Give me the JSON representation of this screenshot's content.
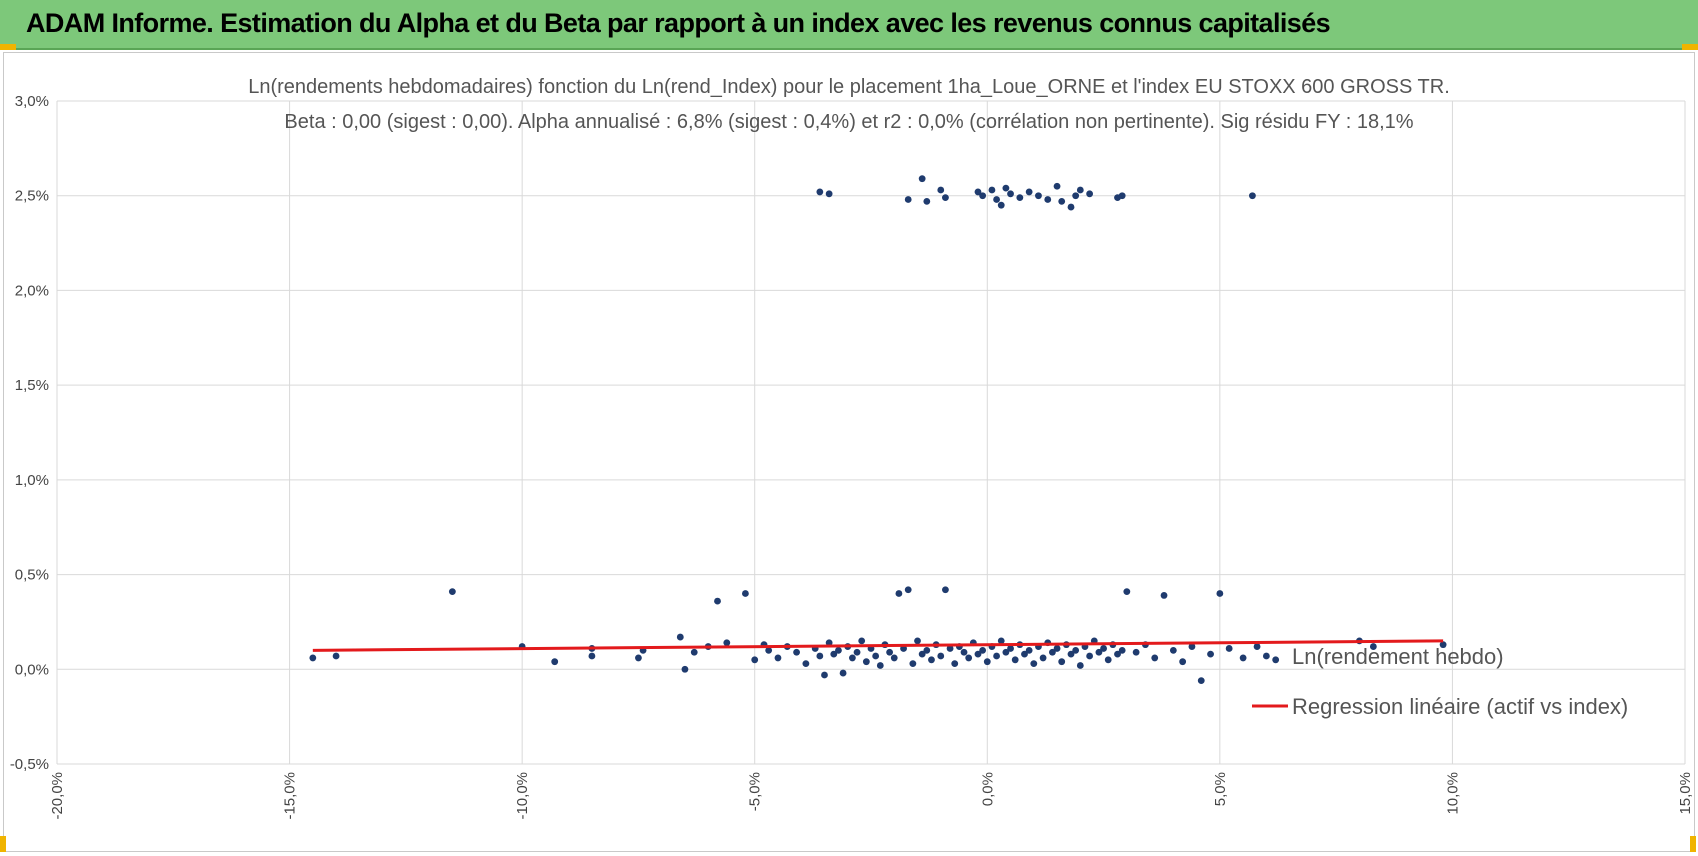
{
  "header": {
    "title": "ADAM Informe. Estimation du Alpha et du Beta par rapport à un index avec les revenus connus capitalisés"
  },
  "colors": {
    "banner": "#7dc87a",
    "points": "#1f3b6e",
    "regression": "#e31a1c",
    "grid": "#d9d9d9",
    "handles": "#f0b400"
  },
  "chart_data": {
    "type": "scatter",
    "title_line1": "Ln(rendements hebdomadaires) fonction du Ln(rend_Index) pour le placement 1ha_Loue_ORNE et l'index EU STOXX 600 GROSS TR.",
    "title_line2": "Beta : 0,00 (sigest : 0,00). Alpha annualisé : 6,8% (sigest : 0,4%) et r2 : 0,0% (corrélation non pertinente). Sig résidu FY : 18,1%",
    "xlim": [
      -0.2,
      0.15
    ],
    "ylim": [
      -0.005,
      0.03
    ],
    "x_ticks": [
      "-20,0%",
      "-15,0%",
      "-10,0%",
      "-5,0%",
      "0,0%",
      "5,0%",
      "10,0%",
      "15,0%"
    ],
    "y_ticks": [
      "3,0%",
      "2,5%",
      "2,0%",
      "1,5%",
      "1,0%",
      "0,5%",
      "0,0%",
      "-0,5%"
    ],
    "grid": "vertical and horizontal",
    "legend_position": "right",
    "series": [
      {
        "name": "Ln(rendement hebdo)",
        "kind": "scatter",
        "points": [
          [
            -0.145,
            0.0006
          ],
          [
            -0.14,
            0.0007
          ],
          [
            -0.115,
            0.0041
          ],
          [
            -0.1,
            0.0012
          ],
          [
            -0.093,
            0.0004
          ],
          [
            -0.085,
            0.0007
          ],
          [
            -0.085,
            0.0011
          ],
          [
            -0.075,
            0.0006
          ],
          [
            -0.074,
            0.001
          ],
          [
            -0.066,
            0.0017
          ],
          [
            -0.065,
            0.0
          ],
          [
            -0.063,
            0.0009
          ],
          [
            -0.06,
            0.0012
          ],
          [
            -0.058,
            0.0036
          ],
          [
            -0.056,
            0.0014
          ],
          [
            -0.052,
            0.004
          ],
          [
            -0.05,
            0.0005
          ],
          [
            -0.048,
            0.0013
          ],
          [
            -0.047,
            0.001
          ],
          [
            -0.045,
            0.0006
          ],
          [
            -0.043,
            0.0012
          ],
          [
            -0.041,
            0.0009
          ],
          [
            -0.039,
            0.0003
          ],
          [
            -0.037,
            0.0011
          ],
          [
            -0.036,
            0.0007
          ],
          [
            -0.035,
            -0.0003
          ],
          [
            -0.034,
            0.0014
          ],
          [
            -0.033,
            0.0008
          ],
          [
            -0.032,
            0.001
          ],
          [
            -0.031,
            -0.0002
          ],
          [
            -0.03,
            0.0012
          ],
          [
            -0.029,
            0.0006
          ],
          [
            -0.028,
            0.0009
          ],
          [
            -0.027,
            0.0015
          ],
          [
            -0.026,
            0.0004
          ],
          [
            -0.025,
            0.0011
          ],
          [
            -0.024,
            0.0007
          ],
          [
            -0.023,
            0.0002
          ],
          [
            -0.022,
            0.0013
          ],
          [
            -0.021,
            0.0009
          ],
          [
            -0.02,
            0.0006
          ],
          [
            -0.019,
            0.004
          ],
          [
            -0.018,
            0.0011
          ],
          [
            -0.017,
            0.0042
          ],
          [
            -0.016,
            0.0003
          ],
          [
            -0.015,
            0.0015
          ],
          [
            -0.014,
            0.0008
          ],
          [
            -0.013,
            0.001
          ],
          [
            -0.012,
            0.0005
          ],
          [
            -0.011,
            0.0013
          ],
          [
            -0.01,
            0.0007
          ],
          [
            -0.009,
            0.0042
          ],
          [
            -0.008,
            0.0011
          ],
          [
            -0.007,
            0.0003
          ],
          [
            -0.006,
            0.0012
          ],
          [
            -0.005,
            0.0009
          ],
          [
            -0.004,
            0.0006
          ],
          [
            -0.003,
            0.0014
          ],
          [
            -0.002,
            0.0008
          ],
          [
            -0.001,
            0.001
          ],
          [
            0.0,
            0.0004
          ],
          [
            0.001,
            0.0012
          ],
          [
            0.002,
            0.0007
          ],
          [
            0.003,
            0.0015
          ],
          [
            0.004,
            0.0009
          ],
          [
            0.005,
            0.0011
          ],
          [
            0.006,
            0.0005
          ],
          [
            0.007,
            0.0013
          ],
          [
            0.008,
            0.0008
          ],
          [
            0.009,
            0.001
          ],
          [
            0.01,
            0.0003
          ],
          [
            0.011,
            0.0012
          ],
          [
            0.012,
            0.0006
          ],
          [
            0.013,
            0.0014
          ],
          [
            0.014,
            0.0009
          ],
          [
            0.015,
            0.0011
          ],
          [
            0.016,
            0.0004
          ],
          [
            0.017,
            0.0013
          ],
          [
            0.018,
            0.0008
          ],
          [
            0.019,
            0.001
          ],
          [
            0.02,
            0.0002
          ],
          [
            0.021,
            0.0012
          ],
          [
            0.022,
            0.0007
          ],
          [
            0.023,
            0.0015
          ],
          [
            0.024,
            0.0009
          ],
          [
            0.025,
            0.0011
          ],
          [
            0.026,
            0.0005
          ],
          [
            0.027,
            0.0013
          ],
          [
            0.028,
            0.0008
          ],
          [
            0.029,
            0.001
          ],
          [
            0.03,
            0.0041
          ],
          [
            0.032,
            0.0009
          ],
          [
            0.034,
            0.0013
          ],
          [
            0.036,
            0.0006
          ],
          [
            0.038,
            0.0039
          ],
          [
            0.04,
            0.001
          ],
          [
            0.042,
            0.0004
          ],
          [
            0.044,
            0.0012
          ],
          [
            0.046,
            -0.0006
          ],
          [
            0.048,
            0.0008
          ],
          [
            0.05,
            0.004
          ],
          [
            0.052,
            0.0011
          ],
          [
            0.055,
            0.0006
          ],
          [
            0.058,
            0.0012
          ],
          [
            0.06,
            0.0007
          ],
          [
            0.062,
            0.0005
          ],
          [
            0.08,
            0.0015
          ],
          [
            0.083,
            0.0012
          ],
          [
            0.098,
            0.0013
          ],
          [
            -0.036,
            0.0252
          ],
          [
            -0.034,
            0.0251
          ],
          [
            -0.017,
            0.0248
          ],
          [
            -0.014,
            0.0259
          ],
          [
            -0.013,
            0.0247
          ],
          [
            -0.01,
            0.0253
          ],
          [
            -0.009,
            0.0249
          ],
          [
            -0.002,
            0.0252
          ],
          [
            -0.001,
            0.025
          ],
          [
            0.001,
            0.0253
          ],
          [
            0.002,
            0.0248
          ],
          [
            0.003,
            0.0245
          ],
          [
            0.004,
            0.0254
          ],
          [
            0.005,
            0.0251
          ],
          [
            0.007,
            0.0249
          ],
          [
            0.009,
            0.0252
          ],
          [
            0.011,
            0.025
          ],
          [
            0.013,
            0.0248
          ],
          [
            0.015,
            0.0255
          ],
          [
            0.016,
            0.0247
          ],
          [
            0.018,
            0.0244
          ],
          [
            0.019,
            0.025
          ],
          [
            0.02,
            0.0253
          ],
          [
            0.022,
            0.0251
          ],
          [
            0.028,
            0.0249
          ],
          [
            0.029,
            0.025
          ],
          [
            0.057,
            0.025
          ]
        ]
      },
      {
        "name": "Regression linéaire (actif vs index)",
        "kind": "line",
        "x": [
          -0.145,
          0.098
        ],
        "y": [
          0.001,
          0.0015
        ]
      }
    ]
  }
}
